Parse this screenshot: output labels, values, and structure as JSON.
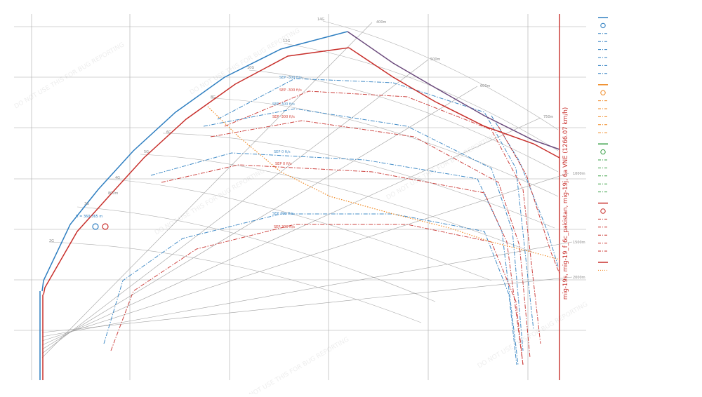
{
  "chart_data": {
    "type": "line",
    "title": "mig-19s, mig-19_f_6c_pakistan, mig-19j, 6a VNE (1266.07 km/h)",
    "watermark": "DO NOT USE THIS FOR BUG REPORTING",
    "grid": true,
    "legend_placement": "right",
    "load_factor_labels": [
      "2G",
      "3G",
      "4G",
      "5G",
      "6G",
      "8G",
      "10G",
      "12G",
      "14G"
    ],
    "radius_labels": [
      "400m",
      "500m",
      "600m",
      "750m",
      "800m",
      "1000m",
      "1500m",
      "2000m"
    ],
    "point_label": "R = 360-365 m",
    "sep_labels": [
      {
        "text": "SEP -300 ft/s",
        "color": "#4f93c9"
      },
      {
        "text": "SEP -300 ft/s",
        "color": "#d3463c"
      },
      {
        "text": "SEP -300 ft/s",
        "color": "#4f93c9"
      },
      {
        "text": "SEP -300 ft/s",
        "color": "#d3463c"
      },
      {
        "text": "SEP 0 ft/s",
        "color": "#4f93c9"
      },
      {
        "text": "SEP 0 ft/s",
        "color": "#d3463c"
      },
      {
        "text": "SEP 300 ft/s",
        "color": "#4f93c9"
      },
      {
        "text": "SEP 300 ft/s",
        "color": "#d3463c"
      }
    ],
    "colors": {
      "blue": "#2f7fc1",
      "red": "#c8302c",
      "orange": "#f08a24",
      "green": "#3aa047",
      "purple": "#6b4a7c",
      "grid": "#9a9a9a"
    },
    "series": [
      {
        "color": "#2f7fc1",
        "style": "solid",
        "points": [
          [
            60,
            415
          ],
          [
            62,
            400
          ],
          [
            100,
            320
          ],
          [
            140,
            270
          ],
          [
            190,
            215
          ],
          [
            250,
            160
          ],
          [
            320,
            110
          ],
          [
            400,
            70
          ],
          [
            495,
            45
          ]
        ]
      },
      {
        "color": "#c8302c",
        "style": "solid",
        "points": [
          [
            62,
            420
          ],
          [
            64,
            410
          ],
          [
            110,
            330
          ],
          [
            155,
            280
          ],
          [
            205,
            225
          ],
          [
            265,
            170
          ],
          [
            335,
            120
          ],
          [
            410,
            80
          ],
          [
            497,
            68
          ]
        ]
      },
      {
        "color": "#6b4a7c",
        "style": "solid",
        "points": [
          [
            495,
            45
          ],
          [
            560,
            90
          ],
          [
            620,
            125
          ],
          [
            690,
            165
          ],
          [
            760,
            200
          ],
          [
            797,
            213
          ]
        ]
      },
      {
        "color": "#c8302c",
        "style": "solid",
        "points": [
          [
            497,
            68
          ],
          [
            560,
            110
          ],
          [
            620,
            145
          ],
          [
            690,
            180
          ],
          [
            760,
            205
          ],
          [
            797,
            225
          ]
        ]
      },
      {
        "color": "#f08a24",
        "style": "dotted",
        "points": [
          [
            296,
            152
          ],
          [
            340,
            195
          ],
          [
            400,
            245
          ],
          [
            470,
            280
          ],
          [
            560,
            305
          ],
          [
            640,
            325
          ],
          [
            700,
            345
          ],
          [
            760,
            360
          ],
          [
            797,
            370
          ]
        ]
      }
    ],
    "legend": [
      {
        "color": "#2f7fc1",
        "kind": "line"
      },
      {
        "color": "#2f7fc1",
        "kind": "circle"
      },
      {
        "color": "#2f7fc1",
        "kind": "dashdot"
      },
      {
        "color": "#2f7fc1",
        "kind": "dashdot"
      },
      {
        "color": "#2f7fc1",
        "kind": "dashdot"
      },
      {
        "color": "#2f7fc1",
        "kind": "dashdot"
      },
      {
        "color": "#2f7fc1",
        "kind": "dashdot"
      },
      {
        "color": "#2f7fc1",
        "kind": "dashdot"
      },
      {
        "color": "#f08a24",
        "kind": "line"
      },
      {
        "color": "#f08a24",
        "kind": "circle"
      },
      {
        "color": "#f08a24",
        "kind": "dashdot"
      },
      {
        "color": "#f08a24",
        "kind": "dashdot"
      },
      {
        "color": "#f08a24",
        "kind": "dashdot"
      },
      {
        "color": "#f08a24",
        "kind": "dashdot"
      },
      {
        "color": "#f08a24",
        "kind": "dashdot"
      },
      {
        "color": "#3aa047",
        "kind": "line"
      },
      {
        "color": "#3aa047",
        "kind": "circle"
      },
      {
        "color": "#3aa047",
        "kind": "dashdot"
      },
      {
        "color": "#3aa047",
        "kind": "dashdot"
      },
      {
        "color": "#3aa047",
        "kind": "dashdot"
      },
      {
        "color": "#3aa047",
        "kind": "dashdot"
      },
      {
        "color": "#3aa047",
        "kind": "dashdot"
      },
      {
        "color": "#c8302c",
        "kind": "line"
      },
      {
        "color": "#c8302c",
        "kind": "circle"
      },
      {
        "color": "#c8302c",
        "kind": "dashdot"
      },
      {
        "color": "#c8302c",
        "kind": "dashdot"
      },
      {
        "color": "#c8302c",
        "kind": "dashdot"
      },
      {
        "color": "#c8302c",
        "kind": "dashdot"
      },
      {
        "color": "#c8302c",
        "kind": "dashdot"
      },
      {
        "color": "#c8302c",
        "kind": "line"
      },
      {
        "color": "#f08a24",
        "kind": "dotted"
      }
    ]
  }
}
